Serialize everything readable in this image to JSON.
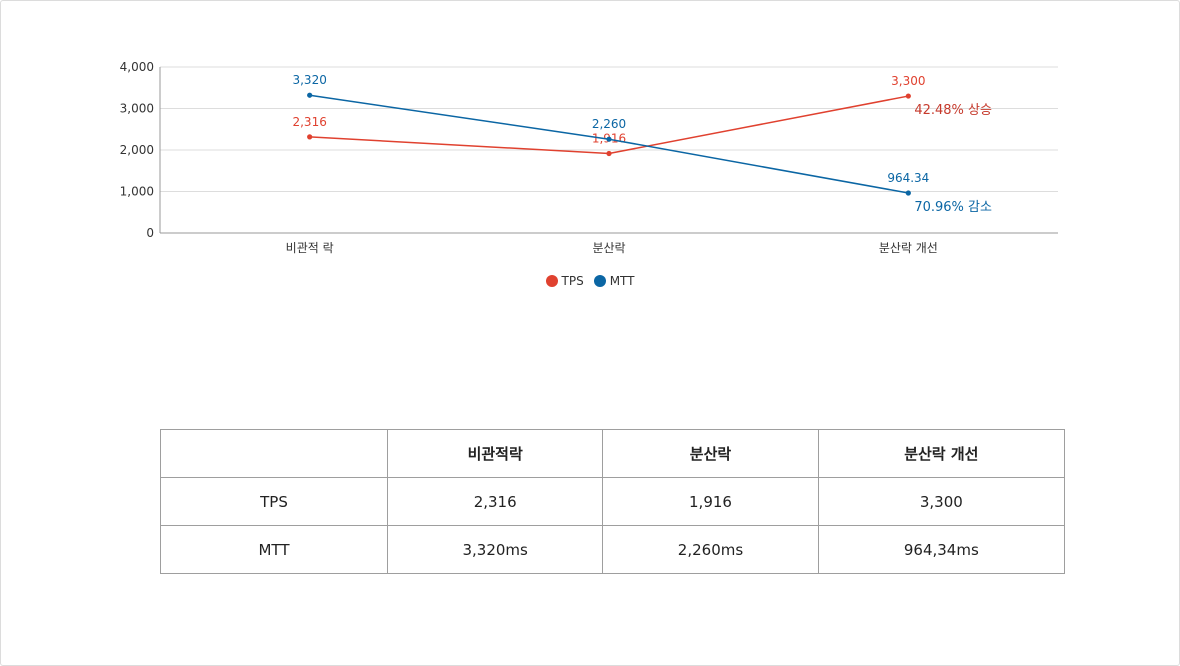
{
  "chart_data": {
    "type": "line",
    "categories": [
      "비관적 락",
      "분산락",
      "분산락 개선"
    ],
    "ylim": [
      0,
      4000
    ],
    "yticks": [
      "0",
      "1,000",
      "2,000",
      "3,000",
      "4,000"
    ],
    "ytick_values": [
      0,
      1000,
      2000,
      3000,
      4000
    ],
    "grid": true,
    "legend_position": "bottom-center",
    "series": [
      {
        "name": "TPS",
        "color": "#e0412f",
        "values": [
          2316,
          1916,
          3300
        ],
        "labels": [
          "2,316",
          "1,916",
          "3,300"
        ]
      },
      {
        "name": "MTT",
        "color": "#0b66a4",
        "values": [
          3320,
          2260,
          964.34
        ],
        "labels": [
          "3,320",
          "2,260",
          "964.34"
        ]
      }
    ],
    "annotations": [
      {
        "text": "42.48% 상승",
        "series": "TPS",
        "category": "분산락 개선",
        "color": "#c63a2c"
      },
      {
        "text": "70.96% 감소",
        "series": "MTT",
        "category": "분산락 개선",
        "color": "#0b66a4"
      }
    ]
  },
  "table": {
    "headers": [
      "",
      "비관적락",
      "분산락",
      "분산락 개선"
    ],
    "rows": [
      {
        "label": "TPS",
        "cells": [
          "2,316",
          "1,916",
          "3,300"
        ]
      },
      {
        "label": "MTT",
        "cells": [
          "3,320ms",
          "2,260ms",
          "964,34ms"
        ]
      }
    ]
  }
}
